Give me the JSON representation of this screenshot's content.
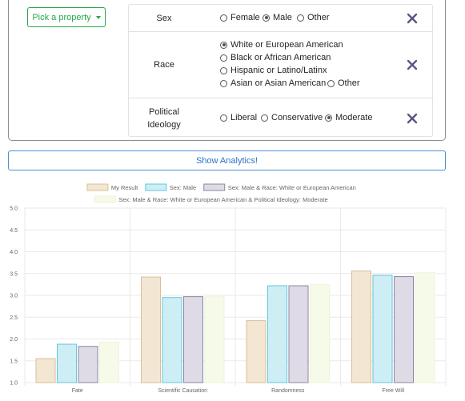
{
  "pick_property": {
    "label": "Pick a property"
  },
  "properties": [
    {
      "label": "Sex",
      "options": [
        {
          "label": "Female",
          "selected": false
        },
        {
          "label": "Male",
          "selected": true
        },
        {
          "label": "Other",
          "selected": false
        }
      ]
    },
    {
      "label": "Race",
      "options": [
        {
          "label": "White or European American",
          "selected": true
        },
        {
          "label": "Black or African American",
          "selected": false
        },
        {
          "label": "Hispanic or Latino/Latinx",
          "selected": false
        },
        {
          "label": "Asian or Asian American",
          "selected": false
        },
        {
          "label": "Other",
          "selected": false
        }
      ]
    },
    {
      "label_line1": "Political",
      "label_line2": "Ideology",
      "options": [
        {
          "label": "Liberal",
          "selected": false
        },
        {
          "label": "Conservative",
          "selected": false
        },
        {
          "label": "Moderate",
          "selected": true
        }
      ]
    }
  ],
  "show_analytics": {
    "label": "Show Analytics!"
  },
  "colors": {
    "pick_green": "#28a745",
    "remove_x": "#5a5584",
    "analytics_blue": "#2a74c8"
  },
  "chart_data": {
    "type": "bar",
    "categories": [
      "Fate",
      "Scientific Causation",
      "Randomness",
      "Free Will"
    ],
    "ylim": [
      1.0,
      5.0
    ],
    "yticks": [
      "1.0",
      "1.5",
      "2.0",
      "2.5",
      "3.0",
      "3.5",
      "4.0",
      "4.5",
      "5.0"
    ],
    "grid": true,
    "legend_position": "top",
    "series": [
      {
        "name": "My Result",
        "values": [
          1.55,
          3.42,
          2.42,
          3.56
        ],
        "fill": "#f3e6d3",
        "stroke": "#d9bf98"
      },
      {
        "name": "Sex: Male",
        "values": [
          1.88,
          2.95,
          3.22,
          3.46
        ],
        "fill": "#cdeef5",
        "stroke": "#62c6e0"
      },
      {
        "name": "Sex: Male & Race: White or European American",
        "values": [
          1.83,
          2.97,
          3.22,
          3.43
        ],
        "fill": "#dedbe6",
        "stroke": "#8c879e"
      },
      {
        "name": "Sex: Male & Race: White or European American & Political Ideology: Moderate",
        "values": [
          1.93,
          2.97,
          3.25,
          3.52
        ],
        "fill": "#f6fae9",
        "stroke": "#eef4d9"
      }
    ]
  }
}
